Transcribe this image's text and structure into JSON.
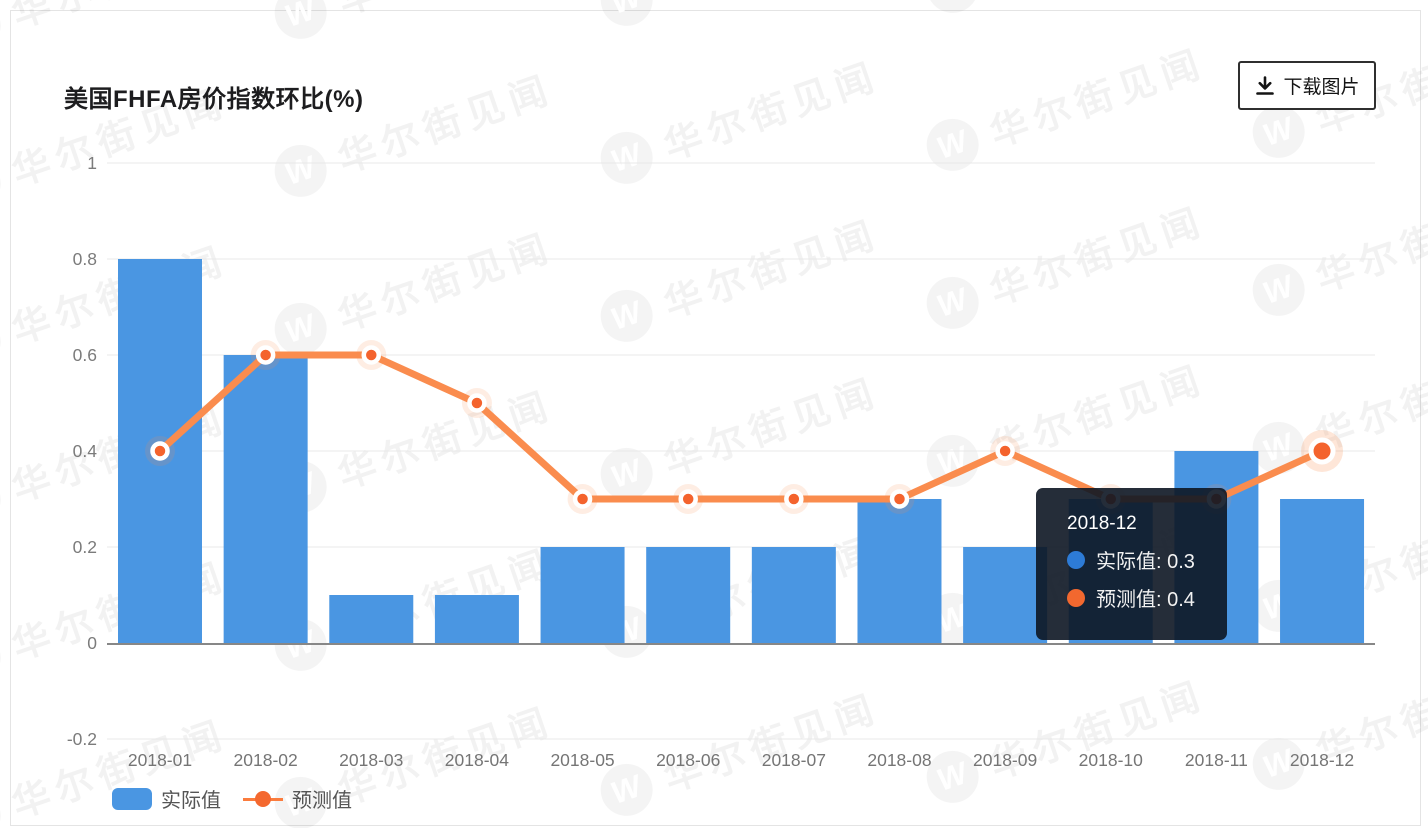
{
  "header": {
    "title": "美国FHFA房价指数环比(%)",
    "download_button": {
      "label": "下载图片",
      "icon": "download-icon"
    }
  },
  "chart_data": {
    "type": "bar+line combo",
    "categories": [
      "2018-01",
      "2018-02",
      "2018-03",
      "2018-04",
      "2018-05",
      "2018-06",
      "2018-07",
      "2018-08",
      "2018-09",
      "2018-10",
      "2018-11",
      "2018-12"
    ],
    "series": [
      {
        "name": "实际值",
        "type": "bar",
        "color": "#4a96e2",
        "values": [
          0.8,
          0.6,
          0.1,
          0.1,
          0.2,
          0.2,
          0.2,
          0.3,
          0.2,
          0.3,
          0.4,
          0.3
        ]
      },
      {
        "name": "预测值",
        "type": "line",
        "color": "#fa8c4e",
        "point_color": "#f4632d",
        "values": [
          0.4,
          0.6,
          0.6,
          0.5,
          0.3,
          0.3,
          0.3,
          0.3,
          0.4,
          0.3,
          0.3,
          0.4
        ]
      }
    ],
    "title": "美国FHFA房价指数环比(%)",
    "xlabel": "",
    "ylabel": "",
    "ylim": [
      -0.2,
      1
    ],
    "yticks": [
      1,
      0.8,
      0.6,
      0.4,
      0.2,
      0,
      -0.2
    ],
    "ytick_labels": [
      "1",
      "0.8",
      "0.6",
      "0.4",
      "0.2",
      "0",
      "-0.2"
    ],
    "grid": true,
    "legend_position": "bottom-left",
    "highlighted_point": {
      "category": "2018-12",
      "series": "预测值"
    }
  },
  "tooltip": {
    "title": "2018-12",
    "items": [
      {
        "label": "实际值",
        "value": "0.3",
        "text": "实际值: 0.3",
        "color": "#2d7bd6"
      },
      {
        "label": "预测值",
        "value": "0.4",
        "text": "预测值: 0.4",
        "color": "#f2682f"
      }
    ]
  },
  "legend": {
    "items": [
      {
        "label": "实际值",
        "swatch": "bar",
        "color": "#4a96e2"
      },
      {
        "label": "预测值",
        "swatch": "line-dot",
        "color": "#fb7c3d"
      }
    ]
  },
  "watermark": {
    "text": "华尔街见闻",
    "logo_letter": "W"
  },
  "colors": {
    "bar": "#4a96e2",
    "line": "#fa8c4e",
    "line_point": "#f4632d",
    "grid": "#e8e8e8",
    "zero_axis": "#878787",
    "axis_text": "#7b7b7b",
    "tooltip_bg": "rgba(13,22,35,0.9)"
  }
}
